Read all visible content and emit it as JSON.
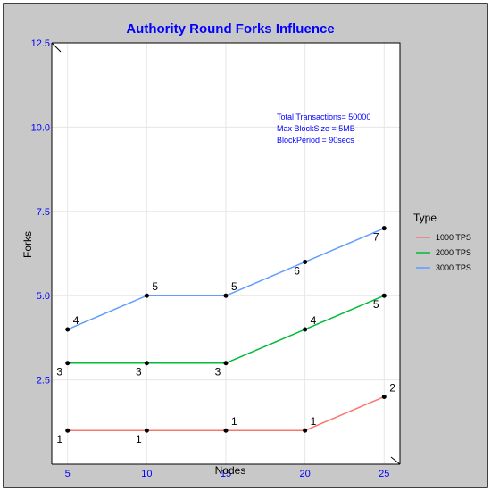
{
  "colors": {
    "tick_text": "#0000ff",
    "title_text": "#0000ff",
    "annotation_text": "#0000ff",
    "panel_bg": "#c8c8c8",
    "plot_bg": "#ffffff",
    "grid": "#e6e6e6"
  },
  "chart_data": {
    "type": "line",
    "title": "Authority Round Forks Influence",
    "xlabel": "Nodes",
    "ylabel": "Forks",
    "x": [
      5,
      10,
      15,
      20,
      25
    ],
    "x_ticks": [
      "5",
      "10",
      "15",
      "20",
      "25"
    ],
    "y_ticks": [
      "2.5",
      "5.0",
      "7.5",
      "10.0",
      "12.5"
    ],
    "xlim": [
      4,
      26
    ],
    "ylim": [
      0,
      12.5
    ],
    "grid": true,
    "legend": {
      "title": "Type",
      "placement": "right"
    },
    "series": [
      {
        "name": "1000 TPS",
        "color": "#f8766d",
        "values": [
          1,
          1,
          1,
          1,
          2
        ],
        "labels": [
          "1",
          "1",
          "1",
          "1",
          "2"
        ]
      },
      {
        "name": "2000 TPS",
        "color": "#00ba38",
        "values": [
          3,
          3,
          3,
          4,
          5
        ],
        "labels": [
          "3",
          "3",
          "3",
          "4",
          "5"
        ]
      },
      {
        "name": "3000 TPS",
        "color": "#619cff",
        "values": [
          4,
          5,
          5,
          6,
          7
        ],
        "labels": [
          "4",
          "5",
          "5",
          "6",
          "7"
        ]
      }
    ],
    "annotations": [
      "Total Transactions= 50000",
      "Max BlockSize = 5MB",
      "BlockPeriod = 90secs"
    ]
  }
}
